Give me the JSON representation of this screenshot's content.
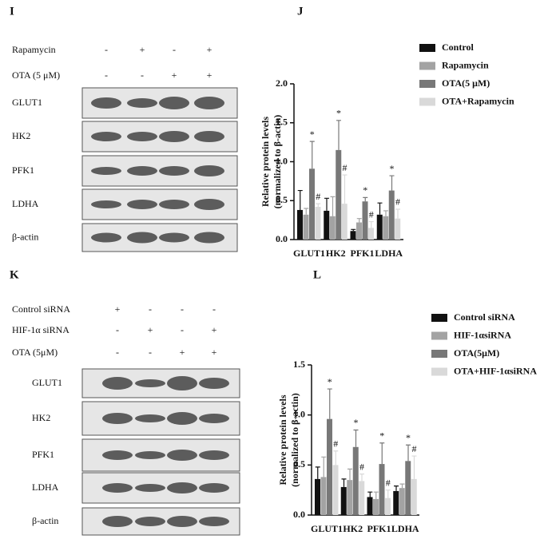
{
  "panels": [
    "I",
    "J",
    "K",
    "L"
  ],
  "blots": [
    {
      "treatments": [
        {
          "label": "Rapamycin",
          "signs": [
            "-",
            "+",
            "-",
            "+"
          ]
        },
        {
          "label": "OTA (5 μM)",
          "signs": [
            "-",
            "-",
            "+",
            "+"
          ]
        }
      ],
      "proteins": [
        "GLUT1",
        "HK2",
        "PFK1",
        "LDHA",
        "β-actin"
      ]
    },
    {
      "treatments": [
        {
          "label": "Control siRNA",
          "signs": [
            "+",
            "-",
            "-",
            "-"
          ]
        },
        {
          "label": "HIF-1α siRNA",
          "signs": [
            "-",
            "+",
            "-",
            "+"
          ]
        },
        {
          "label": "OTA (5μM)",
          "signs": [
            "-",
            "-",
            "+",
            "+"
          ]
        }
      ],
      "proteins": [
        "GLUT1",
        "HK2",
        "PFK1",
        "LDHA",
        "β-actin"
      ]
    }
  ],
  "chart_data": [
    {
      "type": "bar",
      "y_label": [
        "Relative protein levels",
        "(normalized to β-actin)"
      ],
      "categories": [
        "GLUT1",
        "HK2",
        "PFK1",
        "LDHA"
      ],
      "ylim": [
        0,
        2
      ],
      "yticks": [
        {
          "value": 0,
          "label": "0.0"
        },
        0.5,
        {
          "value": 1,
          "label": "1.0"
        },
        1.5,
        {
          "value": 2,
          "label": "2.0"
        }
      ],
      "series": [
        {
          "name": "Control",
          "color": "#111111",
          "values": [
            0.38,
            0.37,
            0.11,
            0.32
          ],
          "errors": [
            0.25,
            0.16,
            0.02,
            0.15
          ]
        },
        {
          "name": "Rapamycin",
          "color": "#a3a3a3",
          "values": [
            0.32,
            0.3,
            0.22,
            0.3
          ],
          "errors": [
            0.08,
            0.25,
            0.05,
            0.07
          ]
        },
        {
          "name": "OTA(5 μM)",
          "color": "#787878",
          "values": [
            0.91,
            1.15,
            0.49,
            0.63
          ],
          "errors": [
            0.35,
            0.38,
            0.05,
            0.19
          ],
          "markers": [
            "*",
            "*",
            "*",
            "*"
          ]
        },
        {
          "name": "OTA+Rapamycin",
          "color": "#d9d9d9",
          "values": [
            0.42,
            0.46,
            0.15,
            0.27
          ],
          "errors": [
            0.04,
            0.37,
            0.08,
            0.12
          ],
          "markers": [
            "#",
            "#",
            "#",
            "#"
          ]
        }
      ]
    },
    {
      "type": "bar",
      "y_label": [
        "Relative protein levels",
        "(normalized to β-actin)"
      ],
      "categories": [
        "GLUT1",
        "HK2",
        "PFK1",
        "LDHA"
      ],
      "ylim": [
        0,
        1.5
      ],
      "yticks": [
        {
          "value": 0,
          "label": "0.0"
        },
        0.5,
        {
          "value": 1,
          "label": "1.0"
        },
        1.5
      ],
      "series": [
        {
          "name": "Control siRNA",
          "color": "#111111",
          "values": [
            0.36,
            0.28,
            0.18,
            0.24
          ],
          "errors": [
            0.12,
            0.08,
            0.05,
            0.05
          ]
        },
        {
          "name": "HIF-1αsiRNA",
          "color": "#a3a3a3",
          "values": [
            0.38,
            0.35,
            0.16,
            0.27
          ],
          "errors": [
            0.2,
            0.11,
            0.07,
            0.04
          ]
        },
        {
          "name": "OTA(5μM)",
          "color": "#787878",
          "values": [
            0.96,
            0.68,
            0.51,
            0.54
          ],
          "errors": [
            0.3,
            0.17,
            0.21,
            0.16
          ],
          "markers": [
            "*",
            "*",
            "*",
            "*"
          ]
        },
        {
          "name": "OTA+HIF-1αsiRNA",
          "color": "#d9d9d9",
          "values": [
            0.5,
            0.34,
            0.17,
            0.36
          ],
          "errors": [
            0.14,
            0.07,
            0.08,
            0.23
          ],
          "markers": [
            "#",
            "#",
            "#",
            "#"
          ]
        }
      ]
    }
  ]
}
